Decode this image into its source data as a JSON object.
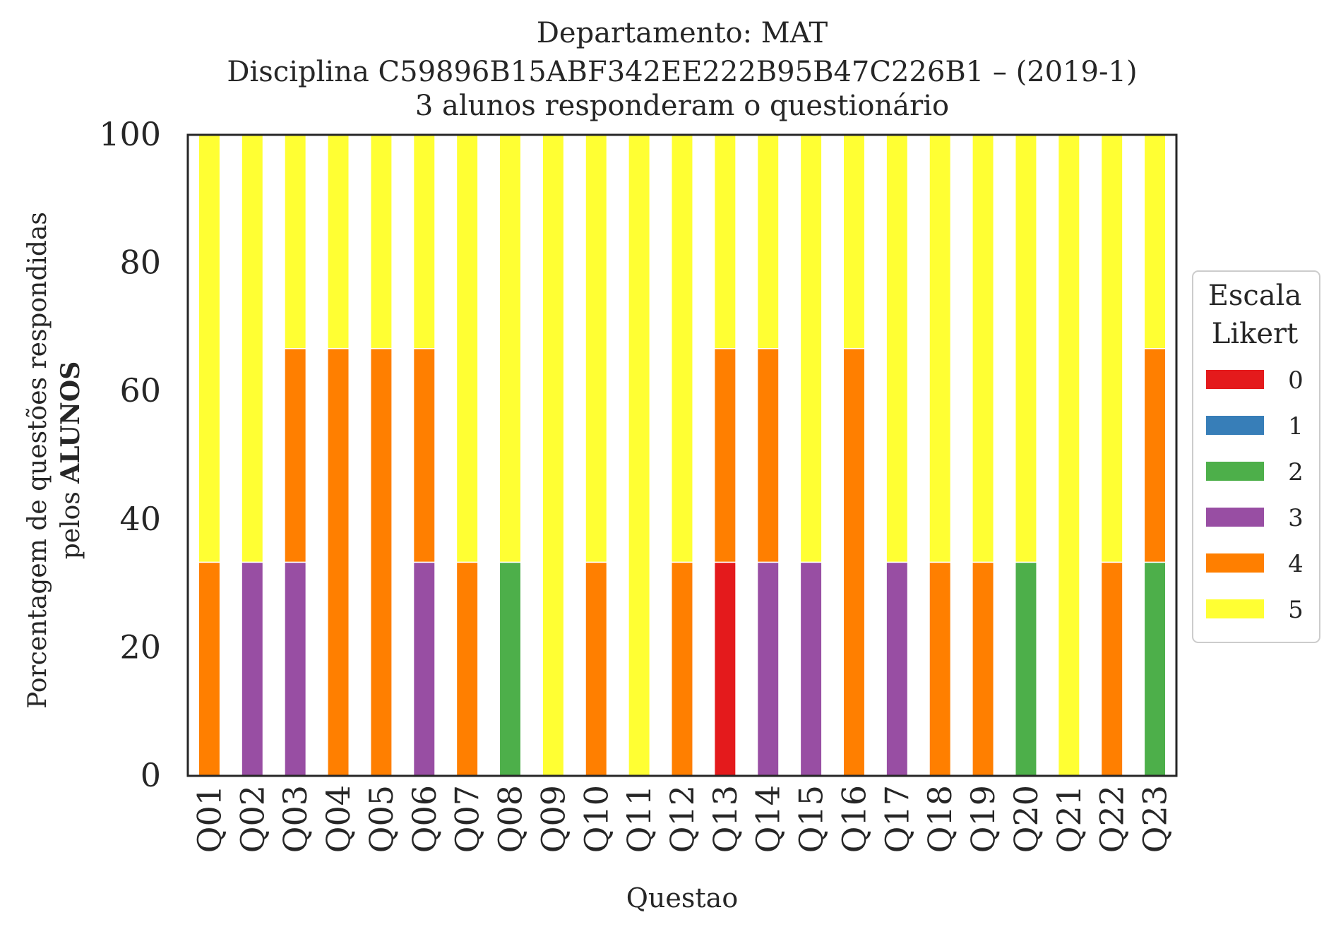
{
  "chart_data": {
    "type": "bar",
    "stacked": true,
    "title_lines": [
      "Departamento: MAT",
      "Disciplina C59896B15ABF342EE222B95B47C226B1 – (2019-1)",
      "3 alunos responderam o questionário"
    ],
    "xlabel": "Questao",
    "ylabel_line1": "Porcentagem de questões respondidas",
    "ylabel_line2_prefix": "pelos ",
    "ylabel_line2_bold": "ALUNOS",
    "ylim": [
      0,
      100
    ],
    "yticks": [
      "0",
      "20",
      "40",
      "60",
      "80",
      "100"
    ],
    "categories": [
      "Q01",
      "Q02",
      "Q03",
      "Q04",
      "Q05",
      "Q06",
      "Q07",
      "Q08",
      "Q09",
      "Q10",
      "Q11",
      "Q12",
      "Q13",
      "Q14",
      "Q15",
      "Q16",
      "Q17",
      "Q18",
      "Q19",
      "Q20",
      "Q21",
      "Q22",
      "Q23"
    ],
    "legend": {
      "title_line1": "Escala",
      "title_line2": "Likert",
      "placement": "center-right outside"
    },
    "series": [
      {
        "name": "0",
        "color": "#e41a1c",
        "values": [
          0,
          0,
          0,
          0,
          0,
          0,
          0,
          0,
          0,
          0,
          0,
          0,
          33.33,
          0,
          0,
          0,
          0,
          0,
          0,
          0,
          0,
          0,
          0
        ]
      },
      {
        "name": "1",
        "color": "#377eb8",
        "values": [
          0,
          0,
          0,
          0,
          0,
          0,
          0,
          0,
          0,
          0,
          0,
          0,
          0,
          0,
          0,
          0,
          0,
          0,
          0,
          0,
          0,
          0,
          0
        ]
      },
      {
        "name": "2",
        "color": "#4daf4a",
        "values": [
          0,
          0,
          0,
          0,
          0,
          0,
          0,
          33.33,
          0,
          0,
          0,
          0,
          0,
          0,
          0,
          0,
          0,
          0,
          0,
          33.33,
          0,
          0,
          33.33
        ]
      },
      {
        "name": "3",
        "color": "#984ea3",
        "values": [
          0,
          33.33,
          33.33,
          0,
          0,
          33.33,
          0,
          0,
          0,
          0,
          0,
          0,
          0,
          33.33,
          33.33,
          0,
          33.33,
          0,
          0,
          0,
          0,
          0,
          0
        ]
      },
      {
        "name": "4",
        "color": "#ff7f00",
        "values": [
          33.33,
          0,
          33.33,
          66.67,
          66.67,
          33.33,
          33.33,
          0,
          0,
          33.33,
          0,
          33.33,
          33.33,
          33.33,
          0,
          66.67,
          0,
          33.33,
          33.33,
          0,
          0,
          33.33,
          33.33
        ]
      },
      {
        "name": "5",
        "color": "#ffff33",
        "values": [
          66.67,
          66.67,
          33.33,
          33.33,
          33.33,
          33.33,
          66.67,
          66.67,
          100,
          66.67,
          100,
          66.67,
          33.33,
          33.33,
          66.67,
          33.33,
          66.67,
          66.67,
          66.67,
          66.67,
          100,
          66.67,
          33.33
        ]
      }
    ]
  }
}
